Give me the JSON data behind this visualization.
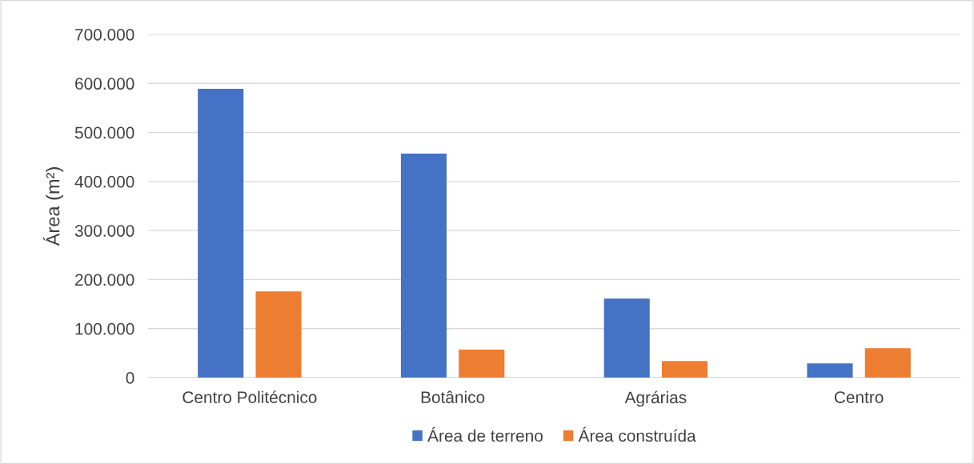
{
  "chart_data": {
    "type": "bar",
    "ylabel": "Área (m²)",
    "categories": [
      "Centro Politécnico",
      "Botânico",
      "Agrárias",
      "Centro"
    ],
    "series": [
      {
        "name": "Área de terreno",
        "color": "#4472c4",
        "values": [
          589000,
          457000,
          161000,
          29000
        ]
      },
      {
        "name": "Área construída",
        "color": "#ed7d31",
        "values": [
          176000,
          57000,
          34000,
          60000
        ]
      }
    ],
    "ylim": [
      0,
      700000
    ],
    "yticks": [
      {
        "value": 0,
        "label": "0"
      },
      {
        "value": 100000,
        "label": "100.000"
      },
      {
        "value": 200000,
        "label": "200.000"
      },
      {
        "value": 300000,
        "label": "300.000"
      },
      {
        "value": 400000,
        "label": "400.000"
      },
      {
        "value": 500000,
        "label": "500.000"
      },
      {
        "value": 600000,
        "label": "600.000"
      },
      {
        "value": 700000,
        "label": "700.000"
      }
    ],
    "grid": "y",
    "legend": "bottom"
  }
}
